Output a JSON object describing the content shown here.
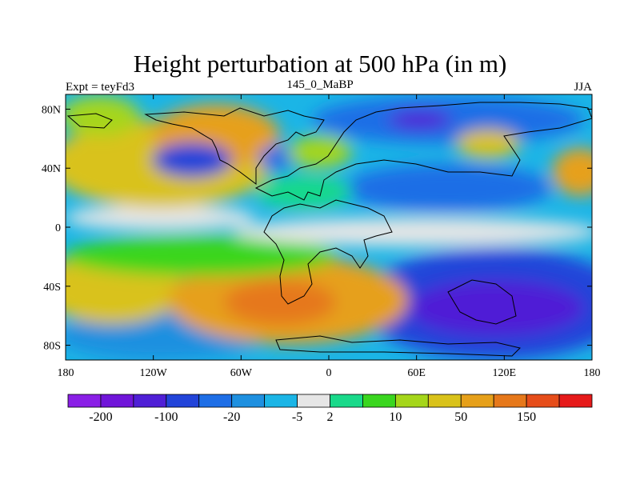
{
  "title": "Height perturbation at 500 hPa (in m)",
  "left_label": "Expt = teyFd3",
  "center_label": "145_0_MaBP",
  "right_label": "JJA",
  "map": {
    "projection": "cylindrical-equidistant",
    "lon_range": [
      -180,
      180
    ],
    "lat_range": [
      -90,
      90
    ],
    "x_ticks": [
      {
        "lon": -180,
        "label": "180"
      },
      {
        "lon": -120,
        "label": "120W"
      },
      {
        "lon": -60,
        "label": "60W"
      },
      {
        "lon": 0,
        "label": "0"
      },
      {
        "lon": 60,
        "label": "60E"
      },
      {
        "lon": 120,
        "label": "120E"
      },
      {
        "lon": 180,
        "label": "180"
      }
    ],
    "y_ticks": [
      {
        "lat": 80,
        "label": "80N"
      },
      {
        "lat": 40,
        "label": "40N"
      },
      {
        "lat": 0,
        "label": "0"
      },
      {
        "lat": -40,
        "label": "40S"
      },
      {
        "lat": -80,
        "label": "80S"
      }
    ]
  },
  "colorbar": {
    "colors": [
      "#8a1fe6",
      "#7015d9",
      "#4f1fd6",
      "#2244d9",
      "#1e6ee6",
      "#1e90e0",
      "#1bb5e6",
      "#e6e6e6",
      "#19d98a",
      "#3ad61f",
      "#a5d61a",
      "#d9c21a",
      "#e6a01a",
      "#e6781a",
      "#e64d1a",
      "#e61a1a"
    ],
    "labels": [
      {
        "index": 1,
        "text": "-200"
      },
      {
        "index": 3,
        "text": "-100"
      },
      {
        "index": 5,
        "text": "-20"
      },
      {
        "index": 7,
        "text": "-5"
      },
      {
        "index": 8,
        "text": "2"
      },
      {
        "index": 10,
        "text": "10"
      },
      {
        "index": 12,
        "text": "50"
      },
      {
        "index": 14,
        "text": "150"
      }
    ]
  },
  "chart_data": {
    "type": "heatmap",
    "title": "Height perturbation at 500 hPa (in m)",
    "variable": "500 hPa geopotential height perturbation",
    "units": "m",
    "experiment": "teyFd3",
    "period": "145_0_MaBP",
    "season": "JJA",
    "x_range": [
      -180,
      180
    ],
    "y_range": [
      -90,
      90
    ],
    "levels": [
      -200,
      -100,
      -20,
      -5,
      2,
      10,
      50,
      150
    ],
    "features": [
      {
        "lon": -35,
        "lat": -50,
        "value": 150,
        "desc": "positive maximum, South Atlantic"
      },
      {
        "lon": -120,
        "lat": -40,
        "value": 60,
        "desc": "positive, South Pacific"
      },
      {
        "lon": 110,
        "lat": -55,
        "value": -150,
        "desc": "negative minimum, South Indian Ocean"
      },
      {
        "lon": 60,
        "lat": 75,
        "value": -150,
        "desc": "negative, Arctic/Eurasia"
      },
      {
        "lon": -90,
        "lat": 55,
        "value": 45,
        "desc": "positive, North America"
      },
      {
        "lon": -125,
        "lat": 50,
        "value": -50,
        "desc": "negative, North Pacific"
      },
      {
        "lon": 0,
        "lat": 5,
        "value": 0,
        "desc": "near-zero equatorial band"
      }
    ]
  }
}
